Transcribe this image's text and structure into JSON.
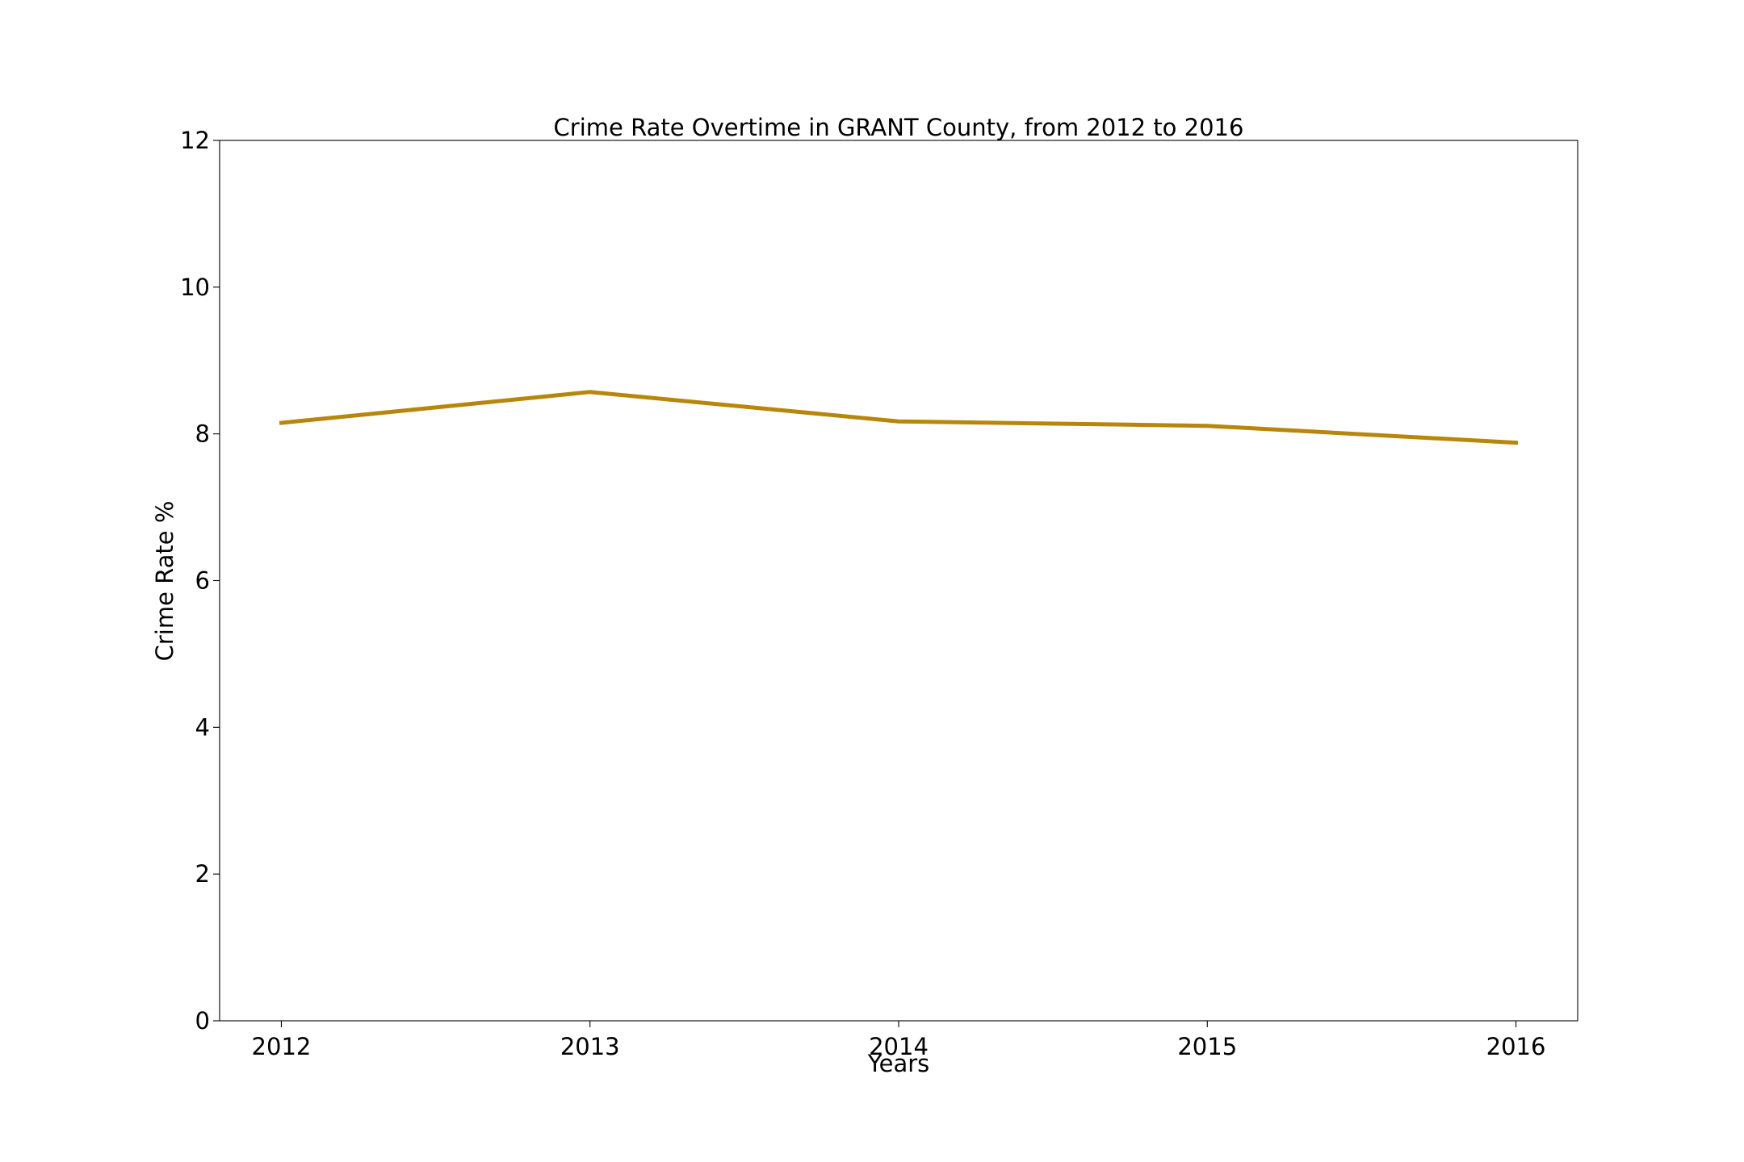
{
  "chart_data": {
    "type": "line",
    "title": "Crime Rate Overtime in GRANT County, from 2012 to 2016",
    "xlabel": "Years",
    "ylabel": "Crime Rate %",
    "x": [
      2012,
      2013,
      2014,
      2015,
      2016
    ],
    "xticks": [
      "2012",
      "2013",
      "2014",
      "2015",
      "2016"
    ],
    "yticks": [
      "0",
      "2",
      "4",
      "6",
      "8",
      "10",
      "12"
    ],
    "ylim": [
      0,
      12
    ],
    "xlim": [
      2011.8,
      2016.2
    ],
    "grid": false,
    "legend": "none",
    "series": [
      {
        "values": [
          8.15,
          8.57,
          8.17,
          8.11,
          7.88
        ],
        "color": "#b8860b"
      }
    ]
  }
}
